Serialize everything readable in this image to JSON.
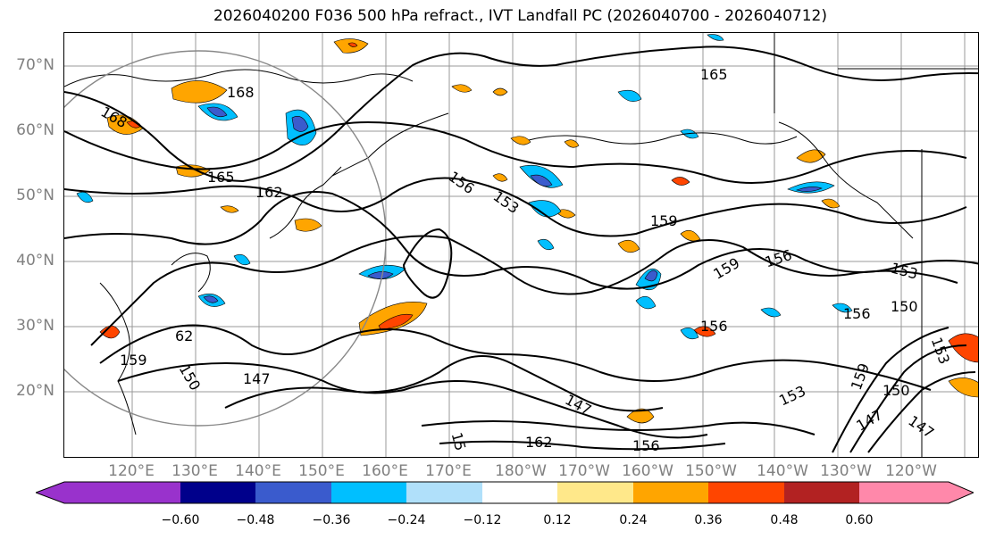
{
  "figure": {
    "title": "2026040200 F036 500 hPa refract., IVT Landfall PC (2026040700 - 2026040712)"
  },
  "map": {
    "latitude_labels": [
      "70°N",
      "60°N",
      "50°N",
      "40°N",
      "30°N",
      "20°N"
    ],
    "longitude_labels": [
      "120°E",
      "130°E",
      "140°E",
      "150°E",
      "160°E",
      "170°E",
      "180°W",
      "170°W",
      "160°W",
      "150°W",
      "140°W",
      "130°W",
      "120°W"
    ],
    "contour_labels": [
      "168",
      "168",
      "165",
      "165",
      "162",
      "62",
      "159",
      "150",
      "156",
      "153",
      "159",
      "159",
      "156",
      "153",
      "156",
      "150",
      "156",
      "147",
      "147",
      "153",
      "15",
      "162",
      "156",
      "159",
      "150",
      "147",
      "147",
      "153"
    ]
  },
  "colorbar": {
    "ticks": [
      "−0.60",
      "−0.48",
      "−0.36",
      "−0.24",
      "−0.12",
      "0.12",
      "0.24",
      "0.36",
      "0.48",
      "0.60"
    ],
    "colors": [
      "#9932cc",
      "#00008b",
      "#3a5bcd",
      "#00bfff",
      "#b0e0fa",
      "#ffffff",
      "#ffe88a",
      "#ffa500",
      "#ff4500",
      "#b22222",
      "#ff88aa"
    ]
  },
  "legend": {
    "pos_palette": [
      "#ffe88a",
      "#ffa500",
      "#ff4500"
    ],
    "neg_palette": [
      "#b0e0fa",
      "#00bfff",
      "#3a5bcd"
    ]
  }
}
